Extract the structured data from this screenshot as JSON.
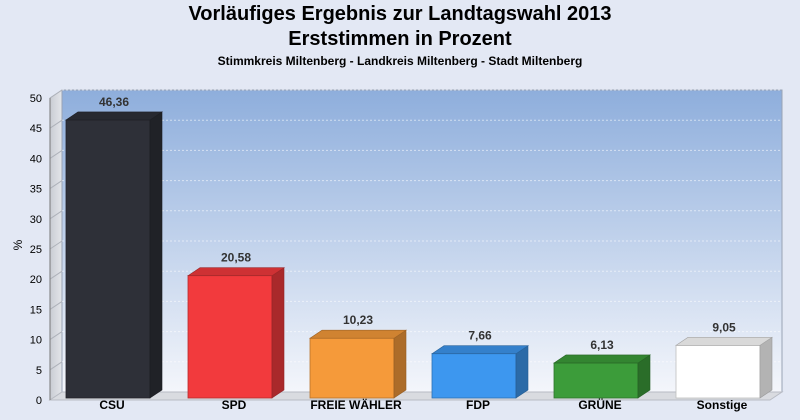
{
  "header": {
    "title": "Vorläufiges Ergebnis zur Landtagswahl 2013",
    "subtitle": "Erststimmen in Prozent",
    "subsubtitle": "Stimmkreis Miltenberg - Landkreis Miltenberg - Stadt Miltenberg"
  },
  "chart_data": {
    "type": "bar",
    "title": "Vorläufiges Ergebnis zur Landtagswahl 2013",
    "subtitle": "Erststimmen in Prozent",
    "xlabel": "",
    "ylabel": "%",
    "ylim": [
      0,
      50
    ],
    "yticks": [
      0,
      5,
      10,
      15,
      20,
      25,
      30,
      35,
      40,
      45,
      50
    ],
    "grid": true,
    "categories": [
      "CSU",
      "SPD",
      "FREIE WÄHLER",
      "FDP",
      "GRÜNE",
      "Sonstige"
    ],
    "values": [
      46.36,
      20.58,
      10.23,
      7.66,
      6.13,
      9.05
    ],
    "value_labels": [
      "46,36",
      "20,58",
      "10,23",
      "7,66",
      "6,13",
      "9,05"
    ],
    "colors": [
      "#2e3038",
      "#f23a3d",
      "#f59a3a",
      "#3d97ef",
      "#3c9c3a",
      "#ffffff"
    ]
  }
}
